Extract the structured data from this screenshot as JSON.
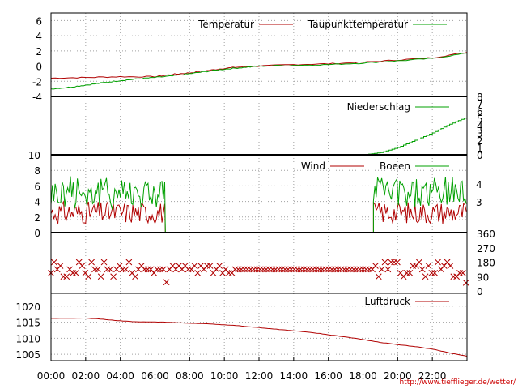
{
  "time_ticks": [
    "00:00",
    "02:00",
    "04:00",
    "06:00",
    "08:00",
    "10:00",
    "12:00",
    "14:00",
    "16:00",
    "18:00",
    "20:00",
    "22:00"
  ],
  "credit": "http://www.tiefflieger.de/wetter/",
  "colors": {
    "red": "#b00000",
    "green": "#00a000",
    "grid": "#a0a0a0"
  },
  "chart_data": [
    {
      "type": "line",
      "ylim": [
        -4,
        7
      ],
      "yticks": [
        -4,
        -2,
        0,
        2,
        4,
        6
      ],
      "grid": true,
      "legend": "top-right",
      "x_unit": "hours",
      "series": [
        {
          "name": "Temperatur",
          "color": "#b00000",
          "x": [
            0,
            2,
            4,
            6,
            7,
            8,
            9,
            10,
            11,
            12,
            14,
            16,
            18,
            20,
            22,
            24
          ],
          "values": [
            -1.6,
            -1.5,
            -1.4,
            -1.4,
            -1.1,
            -0.9,
            -0.6,
            -0.3,
            -0.1,
            0.0,
            0.2,
            0.3,
            0.5,
            0.8,
            1.1,
            1.8
          ]
        },
        {
          "name": "Taupunkttemperatur",
          "color": "#00a000",
          "x": [
            0,
            1,
            2,
            3,
            4,
            5,
            6,
            7,
            8,
            9,
            10,
            11,
            12,
            14,
            16,
            18,
            20,
            22,
            24
          ],
          "values": [
            -3.0,
            -2.8,
            -2.5,
            -2.2,
            -1.9,
            -1.7,
            -1.5,
            -1.3,
            -1.0,
            -0.7,
            -0.4,
            -0.2,
            0.0,
            0.1,
            0.2,
            0.4,
            0.7,
            1.0,
            1.7
          ]
        }
      ]
    },
    {
      "type": "line",
      "ylim": [
        0,
        8
      ],
      "yticks": [
        0,
        1,
        2,
        3,
        4,
        5,
        6,
        7,
        8
      ],
      "grid": false,
      "legend": "top-right",
      "series": [
        {
          "name": "Niederschlag",
          "color": "#00a000",
          "x": [
            0,
            18.0,
            19.0,
            20.0,
            21.0,
            22.0,
            23.0,
            24.0
          ],
          "values": [
            0,
            0,
            0.3,
            1.0,
            2.0,
            3.0,
            4.2,
            5.2
          ]
        }
      ]
    },
    {
      "type": "line",
      "ylim": [
        0,
        10
      ],
      "yticks": [
        0,
        2,
        4,
        6,
        8,
        10
      ],
      "y2ticks": [
        "3",
        "4"
      ],
      "grid": true,
      "legend": "top-right",
      "gap": [
        6.6,
        18.6
      ],
      "series": [
        {
          "name": "Wind",
          "color": "#b00000",
          "base": 2.0,
          "amp": 1.8
        },
        {
          "name": "Boeen",
          "color": "#00a000",
          "base": 4.3,
          "amp": 2.6
        }
      ]
    },
    {
      "type": "scatter",
      "ylim": [
        0,
        360
      ],
      "y2ticks": [
        0,
        90,
        180,
        270,
        360
      ],
      "grid": false,
      "marker": "x",
      "color": "#b00000",
      "typical_value": 135
    },
    {
      "type": "line",
      "ylim": [
        1003,
        1024
      ],
      "yticks": [
        1005,
        1010,
        1015,
        1020
      ],
      "grid": true,
      "legend": "top-right",
      "series": [
        {
          "name": "Luftdruck",
          "color": "#b00000",
          "x": [
            0,
            1,
            2,
            3,
            4,
            5,
            6,
            7,
            8,
            9,
            10,
            11,
            12,
            13,
            14,
            15,
            16,
            17,
            18,
            19,
            20,
            21,
            22,
            23,
            24
          ],
          "values": [
            1016.2,
            1016.2,
            1016.3,
            1015.9,
            1015.4,
            1015.1,
            1015.1,
            1014.9,
            1014.7,
            1014.5,
            1014.2,
            1013.8,
            1013.3,
            1012.8,
            1012.3,
            1011.8,
            1011.1,
            1010.4,
            1009.6,
            1008.7,
            1008.0,
            1007.4,
            1006.6,
            1005.4,
            1004.4
          ]
        }
      ]
    }
  ]
}
